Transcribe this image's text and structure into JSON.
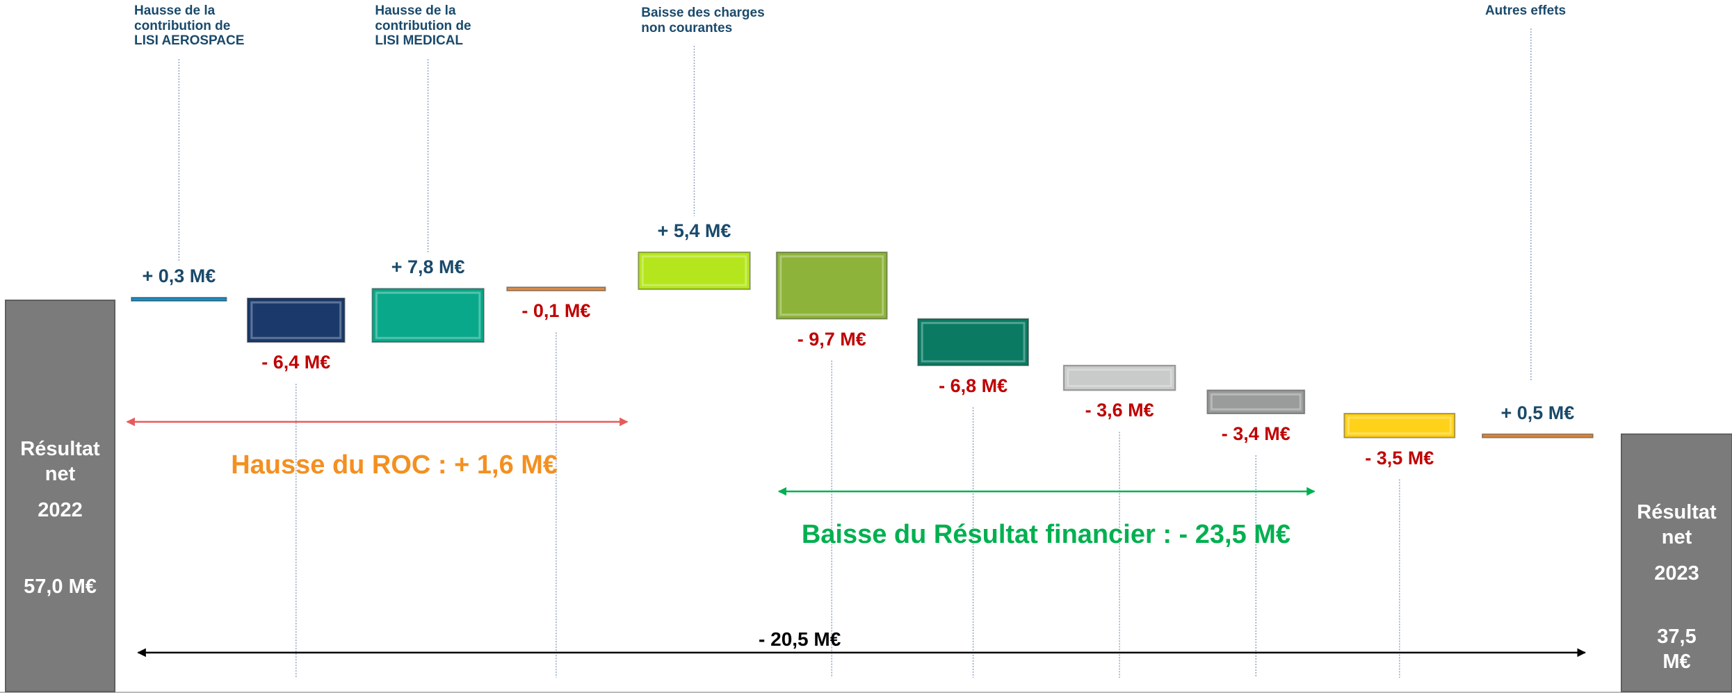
{
  "chart_data": {
    "type": "waterfall",
    "categories": [
      "Hausse de la\ncontribution de\nLISI AEROSPACE",
      null,
      "Hausse de la\ncontribution de\nLISI MEDICAL",
      null,
      "Baisse des charges\nnon courantes",
      null,
      null,
      null,
      null,
      null,
      "Autres effets"
    ],
    "values": [
      0.3,
      -6.4,
      7.8,
      -0.1,
      5.4,
      -9.7,
      -6.8,
      -3.6,
      -3.4,
      -3.5,
      0.5
    ],
    "value_labels": [
      "+ 0,3 M€",
      "- 6,4 M€",
      "+ 7,8 M€",
      "- 0,1 M€",
      "+ 5,4 M€",
      "- 9,7 M€",
      "- 6,8 M€",
      "- 3,6 M€",
      "- 3,4 M€",
      "- 3,5 M€",
      "+ 0,5 M€"
    ],
    "colors": [
      "#1f8fc4",
      "#1b3a6b",
      "#0aa88a",
      "#e0904a",
      "#b5e61d",
      "#8db33a",
      "#0b7a63",
      "#c8cbc9",
      "#9a9c9b",
      "#ffd21a",
      "#e08a3c"
    ],
    "start": {
      "label": "Résultat\nnet",
      "year": "2022",
      "value": 57,
      "value_label": "57,0 M€"
    },
    "end": {
      "label": "Résultat\nnet",
      "year": "2023",
      "value": 37.5,
      "value_label": "37,5 M€"
    },
    "total_color": "#7b7b7b",
    "positive_label_color": "#1a4a6b",
    "negative_label_color": "#c00000",
    "annotations": [
      {
        "text": "Hausse du ROC : + 1,6 M€",
        "color": "#f39020"
      },
      {
        "text": "Baisse du Résultat financier : - 23,5 M€",
        "color": "#00b050"
      },
      {
        "text": "- 20,5 M€",
        "color": "#000000"
      }
    ]
  }
}
